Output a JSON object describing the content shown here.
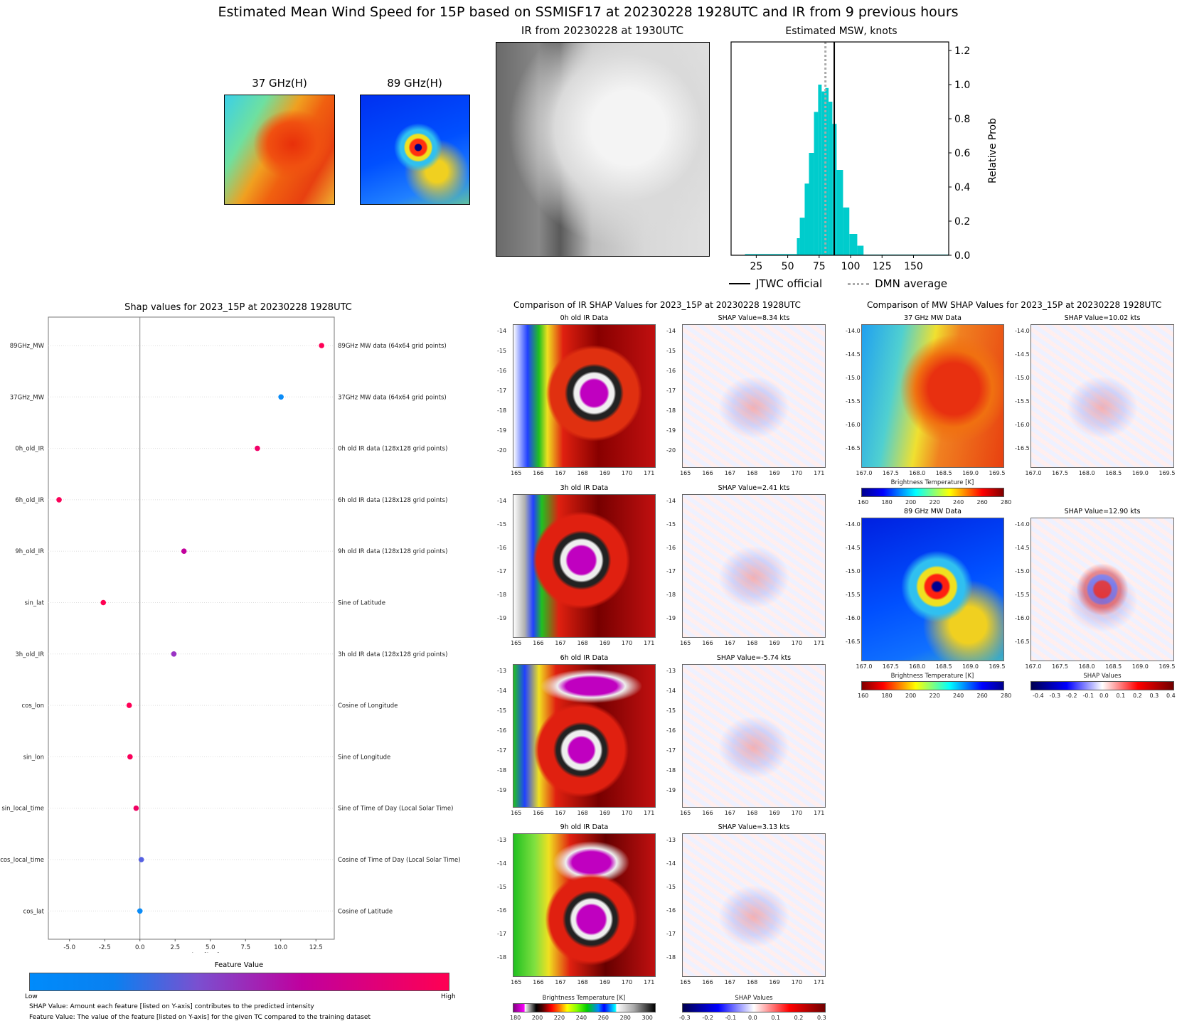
{
  "main_title": "Estimated Mean Wind Speed for 15P based on SSMISF17 at 20230228 1928UTC and IR from 9 previous hours",
  "top_panels": {
    "ghz37_title": "37 GHz(H)",
    "ghz89_title": "89 GHz(H)",
    "ir_title": "IR from 20230228 at 1930UTC"
  },
  "chart_data": [
    {
      "type": "bar",
      "title": "Estimated MSW, knots",
      "xlabel": "",
      "ylabel": "Relative Prob",
      "xlim": [
        5,
        178
      ],
      "ylim": [
        0,
        1.25
      ],
      "xticks": [
        25,
        50,
        75,
        100,
        125,
        150
      ],
      "yticks": [
        0.0,
        0.2,
        0.4,
        0.6,
        0.8,
        1.0,
        1.2
      ],
      "bar_color": "#00cccc",
      "bins": [
        {
          "x0": 16,
          "x1": 57.3,
          "value": 0.007
        },
        {
          "x0": 57.3,
          "x1": 59.6,
          "value": 0.1
        },
        {
          "x0": 59.6,
          "x1": 63.5,
          "value": 0.22
        },
        {
          "x0": 63.5,
          "x1": 66.9,
          "value": 0.42
        },
        {
          "x0": 66.9,
          "x1": 70.9,
          "value": 0.6
        },
        {
          "x0": 70.9,
          "x1": 74.2,
          "value": 0.84
        },
        {
          "x0": 74.2,
          "x1": 77.0,
          "value": 1.0
        },
        {
          "x0": 77.0,
          "x1": 79.9,
          "value": 0.96
        },
        {
          "x0": 79.9,
          "x1": 82.5,
          "value": 0.98
        },
        {
          "x0": 82.5,
          "x1": 85.5,
          "value": 0.9
        },
        {
          "x0": 85.5,
          "x1": 88.9,
          "value": 0.77
        },
        {
          "x0": 88.9,
          "x1": 94.0,
          "value": 0.5
        },
        {
          "x0": 94.0,
          "x1": 99.0,
          "value": 0.28
        },
        {
          "x0": 99.0,
          "x1": 105.3,
          "value": 0.125
        },
        {
          "x0": 105.3,
          "x1": 110.3,
          "value": 0.056
        },
        {
          "x0": 110.3,
          "x1": 178,
          "value": 0.004
        }
      ],
      "lines": [
        {
          "name": "JTWC official",
          "x": 87,
          "style": "solid",
          "color": "#000000"
        },
        {
          "name": "DMN average",
          "x": 80,
          "style": "dotted",
          "color": "#aaaaaa"
        }
      ],
      "legend": "bottom"
    },
    {
      "type": "scatter",
      "title": "Shap values for 2023_15P at 20230228 1928UTC",
      "xlabel": "SHAP Value [kts]",
      "xlim": [
        -6.5,
        13.8
      ],
      "xticks": [
        -5.0,
        -2.5,
        0.0,
        2.5,
        5.0,
        7.5,
        10.0,
        12.5
      ],
      "features": [
        {
          "label": "89GHz_MW",
          "description": "89GHz MW data (64x64 grid points)",
          "value": 12.9,
          "color": "#ff0056"
        },
        {
          "label": "37GHz_MW",
          "description": "37GHz MW data (64x64 grid points)",
          "value": 10.02,
          "color": "#0a8cf8"
        },
        {
          "label": "0h_old_IR",
          "description": "0h old IR data (128x128 grid points)",
          "value": 8.34,
          "color": "#f20068"
        },
        {
          "label": "6h_old_IR",
          "description": "6h old IR data (128x128 grid points)",
          "value": -5.74,
          "color": "#fa0058"
        },
        {
          "label": "9h_old_IR",
          "description": "9h old IR data (128x128 grid points)",
          "value": 3.13,
          "color": "#c2009c"
        },
        {
          "label": "sin_lat",
          "description": "Sine of Latitude",
          "value": -2.6,
          "color": "#ff0052"
        },
        {
          "label": "3h_old_IR",
          "description": "3h old IR data (128x128 grid points)",
          "value": 2.41,
          "color": "#9a33c4"
        },
        {
          "label": "cos_lon",
          "description": "Cosine of Longitude",
          "value": -0.76,
          "color": "#ff0056"
        },
        {
          "label": "sin_lon",
          "description": "Sine of Longitude",
          "value": -0.7,
          "color": "#fa005a"
        },
        {
          "label": "sin_local_time",
          "description": "Sine of Time of Day (Local Solar Time)",
          "value": -0.27,
          "color": "#f00062"
        },
        {
          "label": "cos_local_time",
          "description": "Cosine of Time of Day (Local Solar Time)",
          "value": 0.1,
          "color": "#5560e2"
        },
        {
          "label": "cos_lat",
          "description": "Cosine of Latitude",
          "value": 0.0,
          "color": "#0a8cf8"
        }
      ],
      "colorbar": {
        "title": "Feature Value",
        "low": "Low",
        "high": "High",
        "colors": [
          "#008bfb",
          "#7a50d0",
          "#c0009e",
          "#ff0052"
        ]
      }
    }
  ],
  "notes": {
    "line1": "SHAP Value: Amount each feature [listed on Y-axis] contributes to the predicted intensity",
    "line2": "Feature Value: The value of the feature [listed on Y-axis] for the given TC compared to the training dataset"
  },
  "ir_comparison": {
    "title": "Comparison of IR SHAP Values for 2023_15P at 20230228 1928UTC",
    "lon_ticks": [
      "165",
      "166",
      "167",
      "168",
      "169",
      "170",
      "171"
    ],
    "rows": [
      {
        "ir_title": "0h old IR Data",
        "shap_title": "SHAP Value=8.34 kts",
        "lat_ticks": [
          "-14",
          "-15",
          "-16",
          "-17",
          "-18",
          "-19",
          "-20"
        ]
      },
      {
        "ir_title": "3h old IR Data",
        "shap_title": "SHAP Value=2.41 kts",
        "lat_ticks": [
          "-14",
          "-15",
          "-16",
          "-17",
          "-18",
          "-19"
        ]
      },
      {
        "ir_title": "6h old IR Data",
        "shap_title": "SHAP Value=-5.74 kts",
        "lat_ticks": [
          "-13",
          "-14",
          "-15",
          "-16",
          "-17",
          "-18",
          "-19"
        ]
      },
      {
        "ir_title": "9h old IR Data",
        "shap_title": "SHAP Value=3.13 kts",
        "lat_ticks": [
          "-13",
          "-14",
          "-15",
          "-16",
          "-17",
          "-18"
        ]
      }
    ],
    "ir_colorbar": {
      "title": "Brightness Temperature [K]",
      "ticks": [
        "180",
        "200",
        "220",
        "240",
        "260",
        "280",
        "300"
      ]
    },
    "shap_colorbar": {
      "title": "SHAP Values",
      "ticks": [
        "-0.3",
        "-0.2",
        "-0.1",
        "0.0",
        "0.1",
        "0.2",
        "0.3"
      ]
    }
  },
  "mw_comparison": {
    "title": "Comparison of MW SHAP Values for 2023_15P at 20230228 1928UTC",
    "lon_ticks": [
      "167.0",
      "167.5",
      "168.0",
      "168.5",
      "169.0",
      "169.5"
    ],
    "lat_ticks": [
      "-14.0",
      "-14.5",
      "-15.0",
      "-15.5",
      "-16.0",
      "-16.5"
    ],
    "rows": [
      {
        "mw_title": "37 GHz MW Data",
        "shap_title": "SHAP Value=10.02 kts"
      },
      {
        "mw_title": "89 GHz MW Data",
        "shap_title": "SHAP Value=12.90 kts"
      }
    ],
    "bt_colorbar": {
      "title": "Brightness Temperature [K]",
      "ticks": [
        "160",
        "180",
        "200",
        "220",
        "240",
        "260",
        "280"
      ]
    },
    "shap_colorbar": {
      "title": "SHAP Values",
      "ticks": [
        "-0.4",
        "-0.3",
        "-0.2",
        "-0.1",
        "0.0",
        "0.1",
        "0.2",
        "0.3",
        "0.4"
      ]
    }
  }
}
